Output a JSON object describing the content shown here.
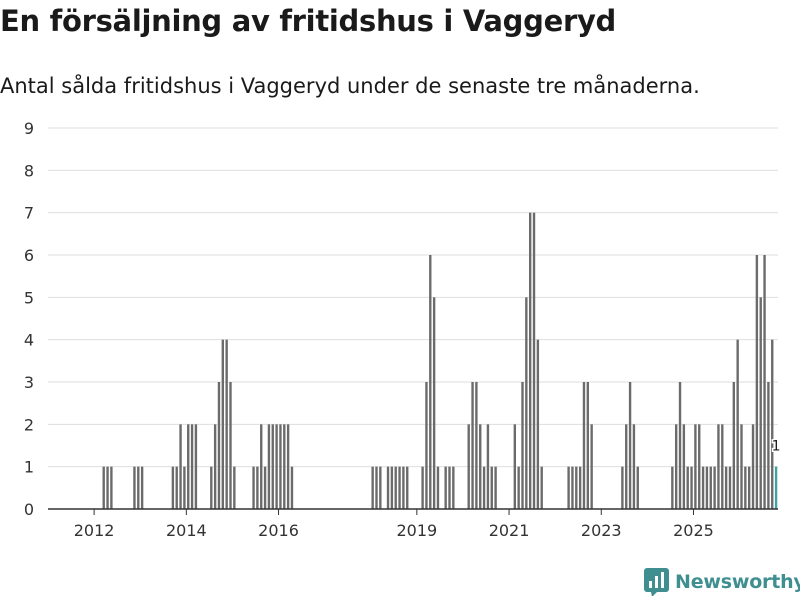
{
  "header": {
    "title": "En försäljning av fritidshus i Vaggeryd",
    "subtitle": "Antal sålda fritidshus i Vaggeryd under de senaste tre månaderna."
  },
  "brand": {
    "name": "Newsworthy",
    "color": "#3f8f91"
  },
  "chart_data": {
    "type": "bar",
    "title": "En försäljning av fritidshus i Vaggeryd",
    "subtitle": "Antal sålda fritidshus i Vaggeryd under de senaste tre månaderna.",
    "xlabel": "",
    "ylabel": "",
    "ylim": [
      0,
      9
    ],
    "yticks": [
      0,
      1,
      2,
      3,
      4,
      5,
      6,
      7,
      8,
      9
    ],
    "grid": true,
    "x_start": {
      "year": 2011,
      "month": 1
    },
    "xticks": [
      {
        "label": "2012",
        "year": 2012
      },
      {
        "label": "2014",
        "year": 2014
      },
      {
        "label": "2016",
        "year": 2016
      },
      {
        "label": "2019",
        "year": 2019
      },
      {
        "label": "2021",
        "year": 2021
      },
      {
        "label": "2023",
        "year": 2023
      },
      {
        "label": "2025",
        "year": 2025
      }
    ],
    "bar_color": "#6b6b6b",
    "highlight_color": "#3ba3a1",
    "highlight_label": "1",
    "values": [
      0,
      0,
      0,
      0,
      0,
      0,
      0,
      0,
      0,
      0,
      0,
      0,
      0,
      0,
      1,
      1,
      1,
      0,
      0,
      0,
      0,
      0,
      1,
      1,
      1,
      0,
      0,
      0,
      0,
      0,
      0,
      0,
      1,
      1,
      2,
      1,
      2,
      2,
      2,
      0,
      0,
      0,
      1,
      2,
      3,
      4,
      4,
      3,
      1,
      0,
      0,
      0,
      0,
      1,
      1,
      2,
      1,
      2,
      2,
      2,
      2,
      2,
      2,
      1,
      0,
      0,
      0,
      0,
      0,
      0,
      0,
      0,
      0,
      0,
      0,
      0,
      0,
      0,
      0,
      0,
      0,
      0,
      0,
      0,
      1,
      1,
      1,
      0,
      1,
      1,
      1,
      1,
      1,
      1,
      0,
      0,
      0,
      1,
      3,
      6,
      5,
      1,
      0,
      1,
      1,
      1,
      0,
      0,
      0,
      2,
      3,
      3,
      2,
      1,
      2,
      1,
      1,
      0,
      0,
      0,
      0,
      2,
      1,
      3,
      5,
      7,
      7,
      4,
      1,
      0,
      0,
      0,
      0,
      0,
      0,
      1,
      1,
      1,
      1,
      3,
      3,
      2,
      0,
      0,
      0,
      0,
      0,
      0,
      0,
      1,
      2,
      3,
      2,
      1,
      0,
      0,
      0,
      0,
      0,
      0,
      0,
      0,
      1,
      2,
      3,
      2,
      1,
      1,
      2,
      2,
      1,
      1,
      1,
      1,
      2,
      2,
      1,
      1,
      3,
      4,
      2,
      1,
      1,
      2,
      6,
      5,
      6,
      3,
      4,
      1
    ]
  }
}
